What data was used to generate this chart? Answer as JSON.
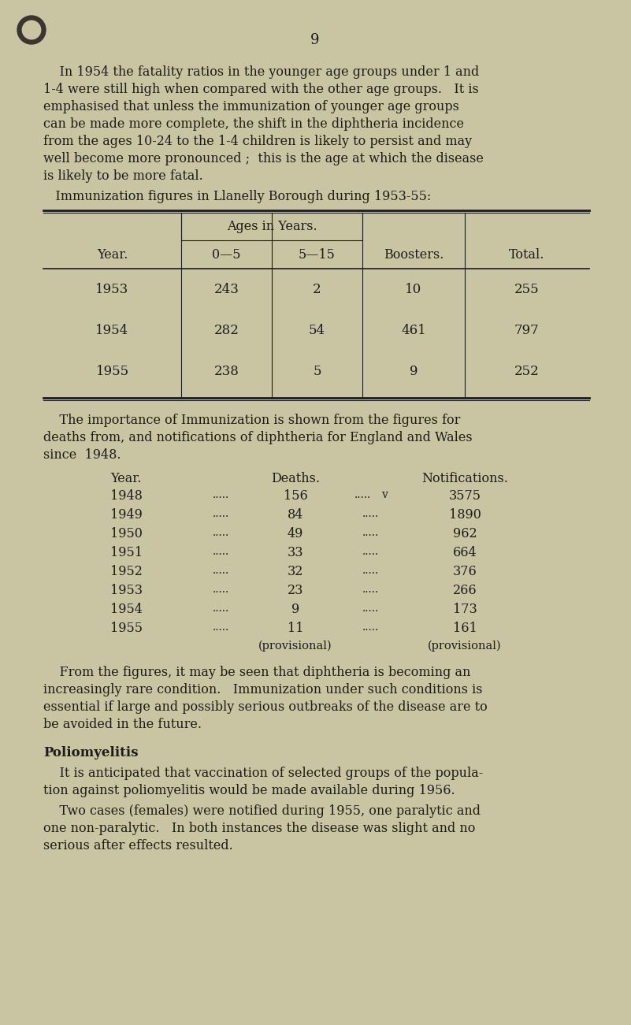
{
  "bg_color": "#c9c5a2",
  "text_color": "#1c1c1c",
  "page_number": "9",
  "para1_lines": [
    "    In 1954 the fatality ratios in the younger age groups under 1 and",
    "1-4 were still high when compared with the other age groups.   It is",
    "emphasised that unless the immunization of younger age groups",
    "can be made more complete, the shift in the diphtheria incidence",
    "from the ages 10-24 to the 1-4 children is likely to persist and may",
    "well become more pronounced ;  this is the age at which the disease",
    "is likely to be more fatal."
  ],
  "table1_title": "   Immunization figures in Llanelly Borough during 1953-55:",
  "table1_data": [
    [
      "1953",
      "243",
      "2",
      "10",
      "255"
    ],
    [
      "1954",
      "282",
      "54",
      "461",
      "797"
    ],
    [
      "1955",
      "238",
      "5",
      "9",
      "252"
    ]
  ],
  "para2_lines": [
    "    The importance of Immunization is shown from the figures for",
    "deaths from, and notifications of diphtheria for England and Wales",
    "since  1948."
  ],
  "table2_data": [
    [
      "1948",
      "156",
      "3575",
      "v"
    ],
    [
      "1949",
      "84",
      "1890",
      ""
    ],
    [
      "1950",
      "49",
      "962",
      ""
    ],
    [
      "1951",
      "33",
      "664",
      ""
    ],
    [
      "1952",
      "32",
      "376",
      ""
    ],
    [
      "1953",
      "23",
      "266",
      ""
    ],
    [
      "1954",
      "9",
      "173",
      ""
    ],
    [
      "1955",
      "11",
      "161",
      ""
    ]
  ],
  "para3_lines": [
    "    From the figures, it may be seen that diphtheria is becoming an",
    "increasingly rare condition.   Immunization under such conditions is",
    "essential if large and possibly serious outbreaks of the disease are to",
    "be avoided in the future."
  ],
  "section_title": "Poliomyelitis",
  "para4_lines": [
    "    It is anticipated that vaccination of selected groups of the popula-",
    "tion against poliomyelitis would be made available during 1956."
  ],
  "para5_lines": [
    "    Two cases (females) were notified during 1955, one paralytic and",
    "one non-paralytic.   In both instances the disease was slight and no",
    "serious after effects resulted."
  ]
}
